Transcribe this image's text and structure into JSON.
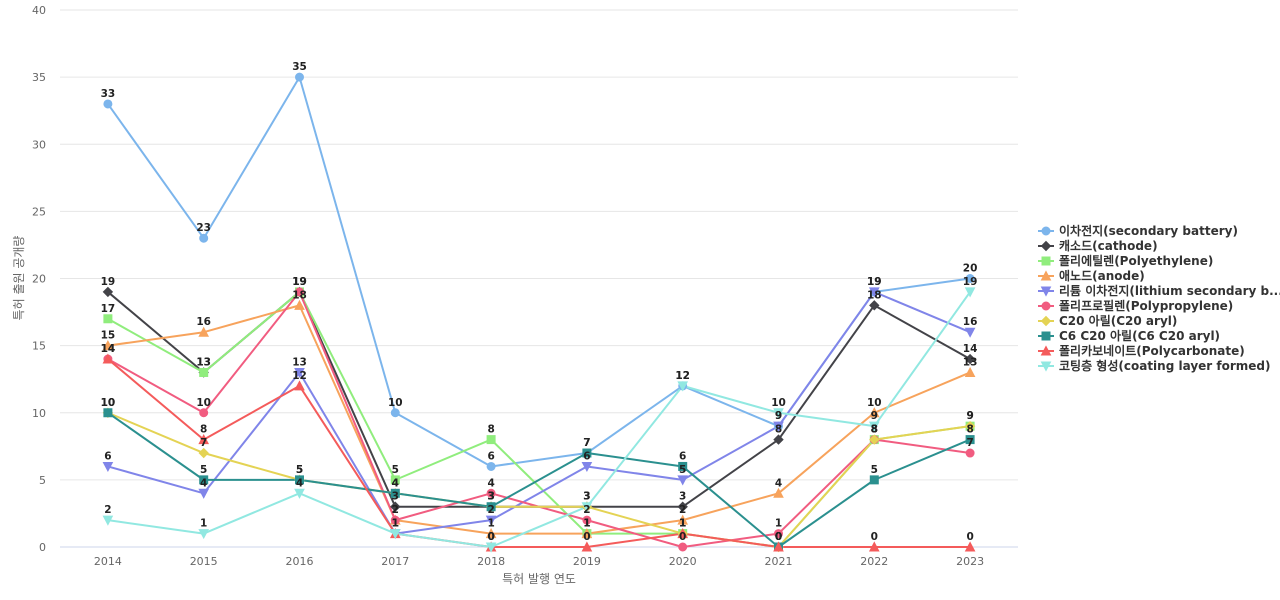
{
  "chart_data": {
    "type": "line",
    "xlabel": "특허 발행 연도",
    "ylabel": "특허 출원 공개량",
    "ylim": [
      0,
      40
    ],
    "yticks": [
      0,
      5,
      10,
      15,
      20,
      25,
      30,
      35,
      40
    ],
    "grid": true,
    "legend_position": "right",
    "categories": [
      "2014",
      "2015",
      "2016",
      "2017",
      "2018",
      "2019",
      "2020",
      "2021",
      "2022",
      "2023"
    ],
    "series": [
      {
        "name": "이차전지(secondary battery)",
        "color": "#7cb5ec",
        "marker": "circle",
        "values": [
          33,
          23,
          35,
          10,
          6,
          7,
          12,
          9,
          19,
          20
        ]
      },
      {
        "name": "캐소드(cathode)",
        "color": "#434348",
        "marker": "diamond",
        "values": [
          19,
          13,
          19,
          3,
          3,
          3,
          3,
          8,
          18,
          14
        ]
      },
      {
        "name": "폴리에틸렌(Polyethylene)",
        "color": "#90ed7d",
        "marker": "square",
        "values": [
          17,
          13,
          19,
          5,
          8,
          1,
          1,
          0,
          8,
          9
        ]
      },
      {
        "name": "애노드(anode)",
        "color": "#f7a35c",
        "marker": "triangle",
        "values": [
          15,
          16,
          18,
          2,
          1,
          1,
          2,
          4,
          10,
          13
        ]
      },
      {
        "name": "리튬 이차전지(lithium secondary b...",
        "color": "#8085e9",
        "marker": "triangle-down",
        "values": [
          6,
          4,
          13,
          1,
          2,
          6,
          5,
          9,
          19,
          16
        ]
      },
      {
        "name": "폴리프로필렌(Polypropylene)",
        "color": "#f15c80",
        "marker": "circle",
        "values": [
          14,
          10,
          19,
          2,
          4,
          2,
          0,
          1,
          8,
          7
        ]
      },
      {
        "name": "C20 아릴(C20 aryl)",
        "color": "#e4d354",
        "marker": "diamond",
        "values": [
          10,
          7,
          5,
          4,
          3,
          3,
          1,
          0,
          8,
          9
        ]
      },
      {
        "name": "C6 C20 아릴(C6 C20 aryl)",
        "color": "#2b908f",
        "marker": "square",
        "values": [
          10,
          5,
          5,
          4,
          3,
          7,
          6,
          0,
          5,
          8
        ]
      },
      {
        "name": "폴리카보네이트(Polycarbonate)",
        "color": "#f45b5b",
        "marker": "triangle",
        "values": [
          14,
          8,
          12,
          1,
          0,
          0,
          1,
          0,
          0,
          0
        ]
      },
      {
        "name": "코팅층 형성(coating layer formed)",
        "color": "#91e8e1",
        "marker": "triangle-down",
        "values": [
          2,
          1,
          4,
          1,
          0,
          3,
          12,
          10,
          9,
          19
        ]
      }
    ]
  }
}
